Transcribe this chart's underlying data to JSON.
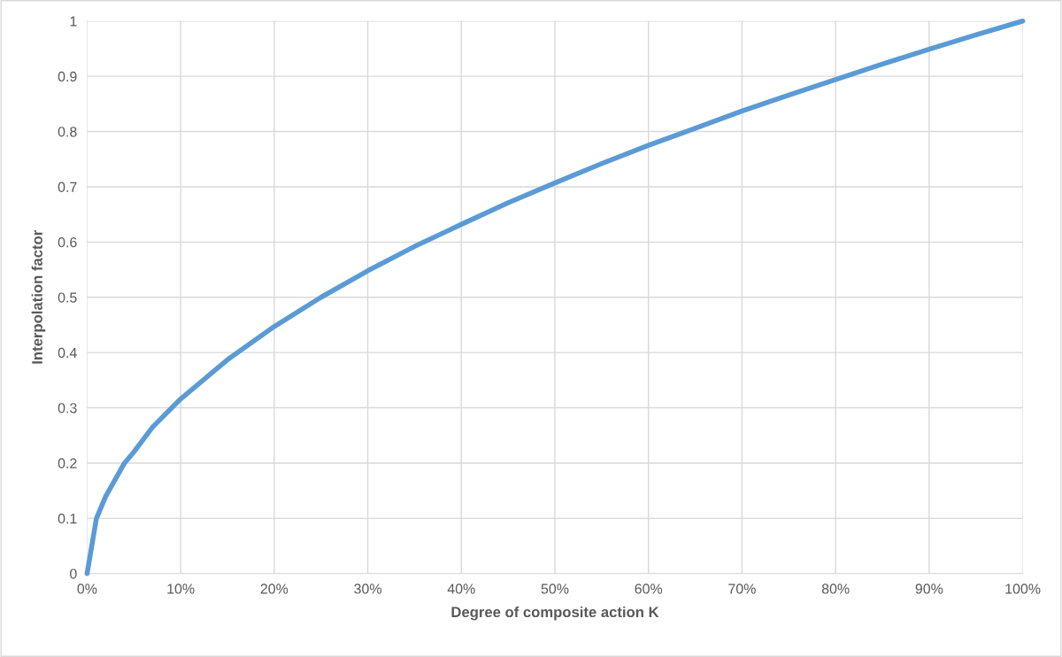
{
  "chart_data": {
    "type": "line",
    "xlabel": "Degree of composite action K",
    "ylabel": "Interpolation factor",
    "series": [
      {
        "color": "#5b9bd5",
        "x": [
          0,
          1,
          1.5,
          2,
          3,
          4,
          5,
          7,
          10,
          15,
          20,
          25,
          30,
          35,
          40,
          45,
          50,
          55,
          60,
          65,
          70,
          75,
          80,
          85,
          90,
          95,
          100
        ],
        "values": [
          0,
          0.1,
          0.12,
          0.14,
          0.17,
          0.2,
          0.22,
          0.265,
          0.316,
          0.387,
          0.447,
          0.5,
          0.548,
          0.592,
          0.632,
          0.671,
          0.707,
          0.742,
          0.775,
          0.806,
          0.837,
          0.866,
          0.894,
          0.922,
          0.949,
          0.975,
          1
        ]
      }
    ],
    "xlim": [
      0,
      100
    ],
    "ylim": [
      0,
      1
    ],
    "xticks": [
      {
        "value": 0,
        "label": "0%"
      },
      {
        "value": 10,
        "label": "10%"
      },
      {
        "value": 20,
        "label": "20%"
      },
      {
        "value": 30,
        "label": "30%"
      },
      {
        "value": 40,
        "label": "40%"
      },
      {
        "value": 50,
        "label": "50%"
      },
      {
        "value": 60,
        "label": "60%"
      },
      {
        "value": 70,
        "label": "70%"
      },
      {
        "value": 80,
        "label": "80%"
      },
      {
        "value": 90,
        "label": "90%"
      },
      {
        "value": 100,
        "label": "100%"
      }
    ],
    "yticks": [
      0,
      0.1,
      0.2,
      0.3,
      0.4,
      0.5,
      0.6,
      0.7,
      0.8,
      0.9,
      1
    ],
    "grid": true,
    "marker": "none",
    "line_style": "solid"
  }
}
